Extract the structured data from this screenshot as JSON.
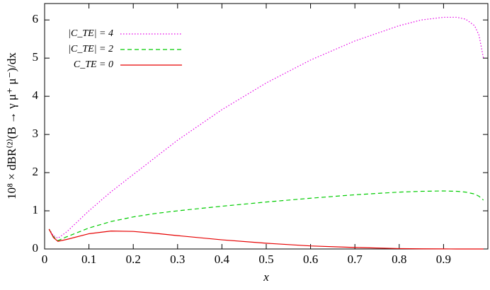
{
  "chart_data": {
    "type": "line",
    "xlabel": "x",
    "ylabel": "10⁸ × dBR⁽²⁾(B → γ μ⁺ μ⁻)/dx",
    "x": [
      0.01,
      0.02,
      0.03,
      0.05,
      0.1,
      0.15,
      0.2,
      0.25,
      0.3,
      0.4,
      0.5,
      0.6,
      0.7,
      0.8,
      0.85,
      0.9,
      0.93,
      0.95,
      0.97,
      0.98,
      0.99
    ],
    "series": [
      {
        "name": "|C_TE| = 4",
        "color": "#e600e6",
        "linestyle": "dotted",
        "values": [
          0.52,
          0.35,
          0.28,
          0.45,
          1.0,
          1.5,
          1.95,
          2.4,
          2.85,
          3.65,
          4.35,
          4.95,
          5.45,
          5.85,
          6.0,
          6.07,
          6.07,
          6.02,
          5.85,
          5.6,
          5.0
        ]
      },
      {
        "name": "|C_TE| = 2",
        "color": "#00cc00",
        "linestyle": "dashed",
        "values": [
          0.52,
          0.32,
          0.22,
          0.32,
          0.55,
          0.72,
          0.84,
          0.93,
          1.0,
          1.12,
          1.23,
          1.33,
          1.42,
          1.49,
          1.51,
          1.52,
          1.51,
          1.49,
          1.44,
          1.38,
          1.28
        ]
      },
      {
        "name": "C_TE = 0",
        "color": "#e60000",
        "linestyle": "solid",
        "values": [
          0.52,
          0.3,
          0.2,
          0.25,
          0.4,
          0.47,
          0.46,
          0.41,
          0.35,
          0.24,
          0.15,
          0.08,
          0.04,
          0.01,
          0.005,
          0.002,
          0,
          0,
          0,
          0,
          0
        ]
      }
    ],
    "xlim": [
      0,
      1
    ],
    "ylim": [
      0,
      6.43
    ],
    "xticks": [
      0,
      0.1,
      0.2,
      0.3,
      0.4,
      0.5,
      0.6,
      0.7,
      0.8,
      0.9
    ],
    "yticks": [
      0,
      1,
      2,
      3,
      4,
      5,
      6
    ],
    "legend": "upper-left"
  }
}
